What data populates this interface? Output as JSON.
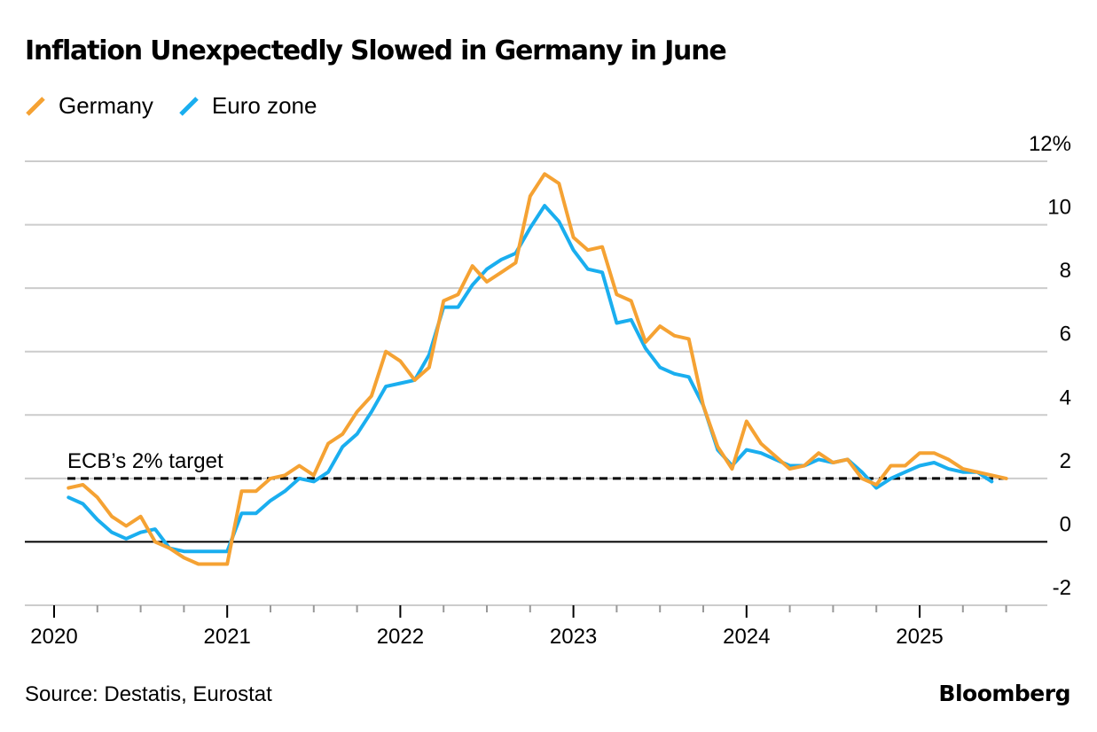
{
  "header": {
    "title": "Inflation Unexpectedly Slowed in Germany in June"
  },
  "footer": {
    "source": "Source: Destatis, Eurostat",
    "brand": "Bloomberg"
  },
  "colors": {
    "germany": "#f5a233",
    "euro_zone": "#1aaeef",
    "target_line": "#000000",
    "grid": "#cccccc"
  },
  "chart_data": {
    "type": "line",
    "title": "Inflation Unexpectedly Slowed in Germany in June",
    "xlabel": "",
    "ylabel": "",
    "y_unit_suffix": "%",
    "ylim": [
      -2,
      12
    ],
    "yticks": [
      -2,
      0,
      2,
      4,
      6,
      8,
      10,
      12
    ],
    "ytick_labels": [
      "-2",
      "0",
      "2",
      "4",
      "6",
      "8",
      "10",
      "12%"
    ],
    "xticks": [
      "2020",
      "2021",
      "2022",
      "2023",
      "2024",
      "2025"
    ],
    "x_start": "2020-02",
    "x_end": "2025-06",
    "grid": true,
    "legend_position": "top-left",
    "annotation": {
      "text": "ECB’s 2% target",
      "y": 2
    },
    "series": [
      {
        "name": "Germany",
        "color": "#f5a233",
        "values": [
          1.7,
          1.8,
          1.4,
          0.8,
          0.5,
          0.8,
          0.0,
          -0.2,
          -0.5,
          -0.7,
          -0.7,
          -0.7,
          1.6,
          1.6,
          2.0,
          2.1,
          2.4,
          2.1,
          3.1,
          3.4,
          4.1,
          4.6,
          6.0,
          5.7,
          5.1,
          5.5,
          7.6,
          7.8,
          8.7,
          8.2,
          8.5,
          8.8,
          10.9,
          11.6,
          11.3,
          9.6,
          9.2,
          9.3,
          7.8,
          7.6,
          6.3,
          6.8,
          6.5,
          6.4,
          4.3,
          3.0,
          2.3,
          3.8,
          3.1,
          2.7,
          2.3,
          2.4,
          2.8,
          2.5,
          2.6,
          2.0,
          1.8,
          2.4,
          2.4,
          2.8,
          2.8,
          2.6,
          2.3,
          2.2,
          2.1,
          2.0
        ]
      },
      {
        "name": "Euro zone",
        "color": "#1aaeef",
        "values": [
          1.4,
          1.2,
          0.7,
          0.3,
          0.1,
          0.3,
          0.4,
          -0.2,
          -0.3,
          -0.3,
          -0.3,
          -0.3,
          0.9,
          0.9,
          1.3,
          1.6,
          2.0,
          1.9,
          2.2,
          3.0,
          3.4,
          4.1,
          4.9,
          5.0,
          5.1,
          5.9,
          7.4,
          7.4,
          8.1,
          8.6,
          8.9,
          9.1,
          9.9,
          10.6,
          10.1,
          9.2,
          8.6,
          8.5,
          6.9,
          7.0,
          6.1,
          5.5,
          5.3,
          5.2,
          4.3,
          2.9,
          2.4,
          2.9,
          2.8,
          2.6,
          2.4,
          2.4,
          2.6,
          2.5,
          2.6,
          2.2,
          1.7,
          2.0,
          2.2,
          2.4,
          2.5,
          2.3,
          2.2,
          2.2,
          1.9,
          null
        ]
      }
    ]
  }
}
